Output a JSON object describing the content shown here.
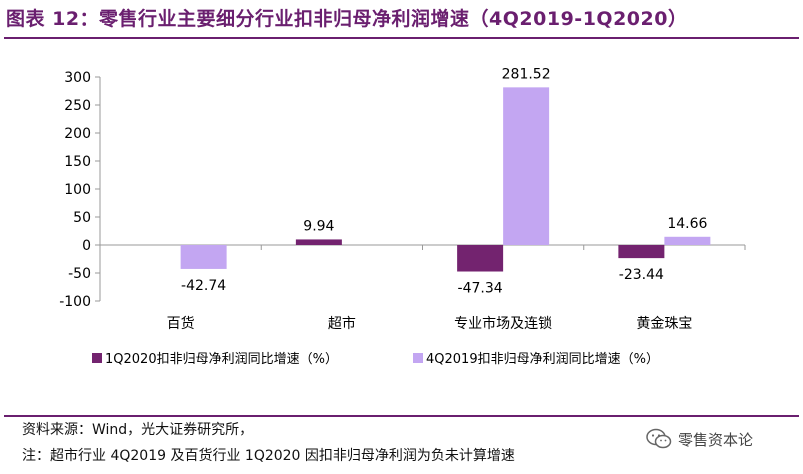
{
  "header": {
    "title": "图表 12：零售行业主要细分行业扣非归母净利润增速（4Q2019-1Q2020）"
  },
  "colors": {
    "brand": "#6a1f6f",
    "series1": "#73236f",
    "series2": "#c3a6f2"
  },
  "chart_data": {
    "type": "bar",
    "title": "零售行业主要细分行业扣非归母净利润增速（4Q2019-1Q2020）",
    "categories": [
      "百货",
      "超市",
      "专业市场及连锁",
      "黄金珠宝"
    ],
    "series": [
      {
        "name": "1Q2020扣非归母净利润同比增速（%）",
        "values": [
          null,
          9.94,
          -47.34,
          -23.44
        ],
        "labels": [
          "",
          "9.94",
          "-47.34",
          "-23.44"
        ]
      },
      {
        "name": "4Q2019扣非归母净利润同比增速（%）",
        "values": [
          -42.74,
          null,
          281.52,
          14.66
        ],
        "labels": [
          "-42.74",
          "",
          "281.52",
          "14.66"
        ]
      }
    ],
    "ylim": [
      -100,
      300
    ],
    "yticks": [
      -100,
      -50,
      0,
      50,
      100,
      150,
      200,
      250,
      300
    ],
    "ytick_labels": [
      "-100",
      "-50",
      "0",
      "50",
      "100",
      "150",
      "200",
      "250",
      "300"
    ],
    "xlabel": "",
    "ylabel": "",
    "grid": false,
    "legend_position": "bottom"
  },
  "footer": {
    "source": "资料来源：Wind，光大证券研究所，",
    "note": "注：超市行业 4Q2019 及百货行业 1Q2020 因扣非归母净利润为负未计算增速"
  },
  "watermark": {
    "text": "零售资本论",
    "icon": "wechat-icon"
  }
}
